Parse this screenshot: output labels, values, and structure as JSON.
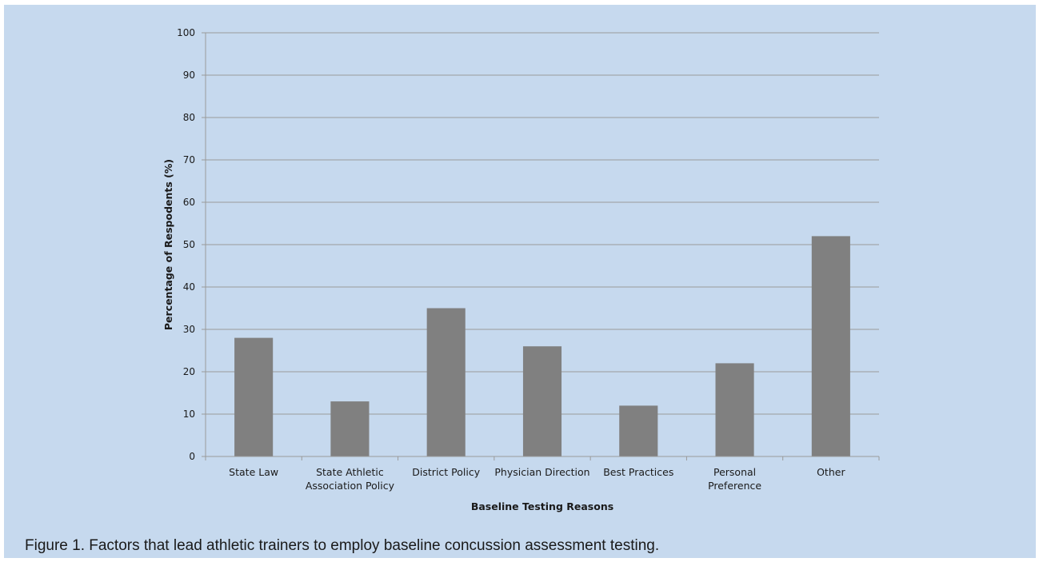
{
  "chart_data": {
    "type": "bar",
    "xlabel": "Baseline Testing Reasons",
    "ylabel": "Percentage of Respodents (%)",
    "ylim": [
      0,
      100
    ],
    "yticks": [
      0,
      10,
      20,
      30,
      40,
      50,
      60,
      70,
      80,
      90,
      100
    ],
    "grid": true,
    "categories": [
      [
        "State Law"
      ],
      [
        "State Athletic",
        "Association Policy"
      ],
      [
        "District Policy"
      ],
      [
        "Physician Direction"
      ],
      [
        "Best Practices"
      ],
      [
        "Personal",
        "Preference"
      ],
      [
        "Other"
      ]
    ],
    "values": [
      28,
      13,
      35,
      26,
      12,
      22,
      52
    ],
    "bar_color": "#808080",
    "background_color": "#c6d9ee"
  },
  "caption": "Figure 1.  Factors that lead athletic trainers to employ baseline concussion assessment testing."
}
